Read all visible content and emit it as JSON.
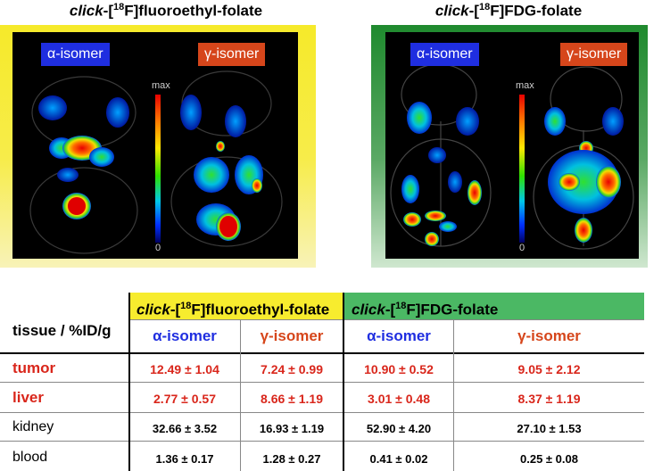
{
  "panels": {
    "left": {
      "title_prefix": "click",
      "title_mid": "-[",
      "title_sup": "18",
      "title_suffix": "F]fluoroethyl-folate",
      "alpha_label": "α-isomer",
      "gamma_label": "γ-isomer",
      "colorbar_max": "max",
      "colorbar_min": "0",
      "frame_color": "#f6ea2a"
    },
    "right": {
      "title_prefix": "click",
      "title_mid": "-[",
      "title_sup": "18",
      "title_suffix": "F]FDG-folate",
      "alpha_label": "α-isomer",
      "gamma_label": "γ-isomer",
      "colorbar_max": "max",
      "colorbar_min": "0",
      "frame_color": "#1f8a2e"
    }
  },
  "table": {
    "header_label": "tissue / %ID/g",
    "groups": [
      {
        "prefix": "click",
        "mid": "-[",
        "sup": "18",
        "suffix": "F]fluoroethyl-folate",
        "color": "#f7ec2e"
      },
      {
        "prefix": "click",
        "mid": "-[",
        "sup": "18",
        "suffix": "F]FDG-folate",
        "color": "#4bb864"
      }
    ],
    "subheaders": [
      "α-isomer",
      "γ-isomer",
      "α-isomer",
      "γ-isomer"
    ],
    "rows": [
      {
        "tissue": "tumor",
        "values": [
          "12.49 ± 1.04",
          "7.24 ± 0.99",
          "10.90 ± 0.52",
          "9.05 ± 2.12"
        ]
      },
      {
        "tissue": "liver",
        "values": [
          "2.77 ± 0.57",
          "8.66 ± 1.19",
          "3.01 ± 0.48",
          "8.37 ± 1.19"
        ]
      },
      {
        "tissue": "kidney",
        "values": [
          "32.66 ± 3.52",
          "16.93 ± 1.19",
          "52.90 ± 4.20",
          "27.10 ± 1.53"
        ]
      },
      {
        "tissue": "blood",
        "values": [
          "1.36 ± 0.17",
          "1.28 ± 0.27",
          "0.41 ± 0.02",
          "0.25 ± 0.08"
        ]
      }
    ],
    "highlight_color": "#d9261b"
  }
}
